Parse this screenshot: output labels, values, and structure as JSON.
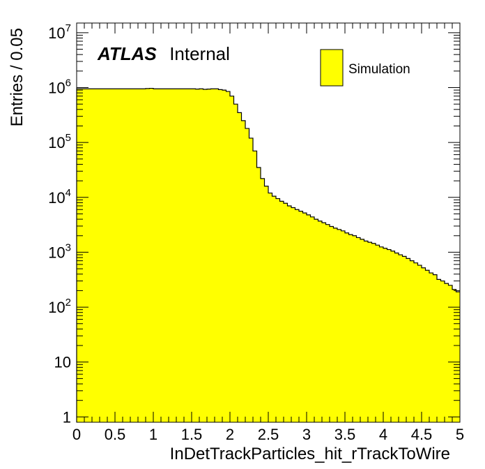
{
  "chart_data": {
    "type": "bar",
    "style": "filled-histogram",
    "fill_color": "#ffff00",
    "line_color": "#000000",
    "xlabel": "InDetTrackParticles_hit_rTrackToWire",
    "ylabel": "Entries / 0.05",
    "xlim": [
      0,
      5
    ],
    "ylim": [
      0.8,
      15000000
    ],
    "yscale": "log",
    "bin_width": 0.05,
    "x_ticks": [
      "0",
      "0.5",
      "1",
      "1.5",
      "2",
      "2.5",
      "3",
      "3.5",
      "4",
      "4.5",
      "5"
    ],
    "y_ticks": [
      {
        "value": 1,
        "base": "1",
        "exp": ""
      },
      {
        "value": 10,
        "base": "10",
        "exp": ""
      },
      {
        "value": 100,
        "base": "10",
        "exp": "2"
      },
      {
        "value": 1000,
        "base": "10",
        "exp": "3"
      },
      {
        "value": 10000,
        "base": "10",
        "exp": "4"
      },
      {
        "value": 100000,
        "base": "10",
        "exp": "5"
      },
      {
        "value": 1000000,
        "base": "10",
        "exp": "6"
      },
      {
        "value": 10000000,
        "base": "10",
        "exp": "7"
      }
    ],
    "series": [
      {
        "name": "Simulation",
        "values": [
          950000,
          950000,
          950000,
          950000,
          950000,
          950000,
          950000,
          950000,
          950000,
          950000,
          950000,
          950000,
          950000,
          950000,
          950000,
          950000,
          950000,
          950000,
          960000,
          970000,
          950000,
          950000,
          950000,
          950000,
          950000,
          950000,
          950000,
          950000,
          950000,
          950000,
          950000,
          940000,
          950000,
          930000,
          940000,
          950000,
          950000,
          920000,
          900000,
          850000,
          700000,
          500000,
          350000,
          250000,
          180000,
          120000,
          70000,
          35000,
          22000,
          16000,
          12000,
          10500,
          9500,
          8500,
          7800,
          7000,
          6500,
          6000,
          5600,
          5200,
          4800,
          4400,
          4000,
          3700,
          3450,
          3200,
          2950,
          2750,
          2600,
          2450,
          2250,
          2100,
          2000,
          1850,
          1720,
          1600,
          1520,
          1450,
          1350,
          1250,
          1180,
          1120,
          1050,
          970,
          900,
          840,
          770,
          700,
          640,
          580,
          520,
          470,
          420,
          390,
          320,
          300,
          270,
          250,
          210,
          190
        ]
      }
    ],
    "annotation": {
      "bold": "ATLAS",
      "text": "Internal"
    },
    "legend": {
      "position": "top-right",
      "entries": [
        "Simulation"
      ]
    }
  }
}
